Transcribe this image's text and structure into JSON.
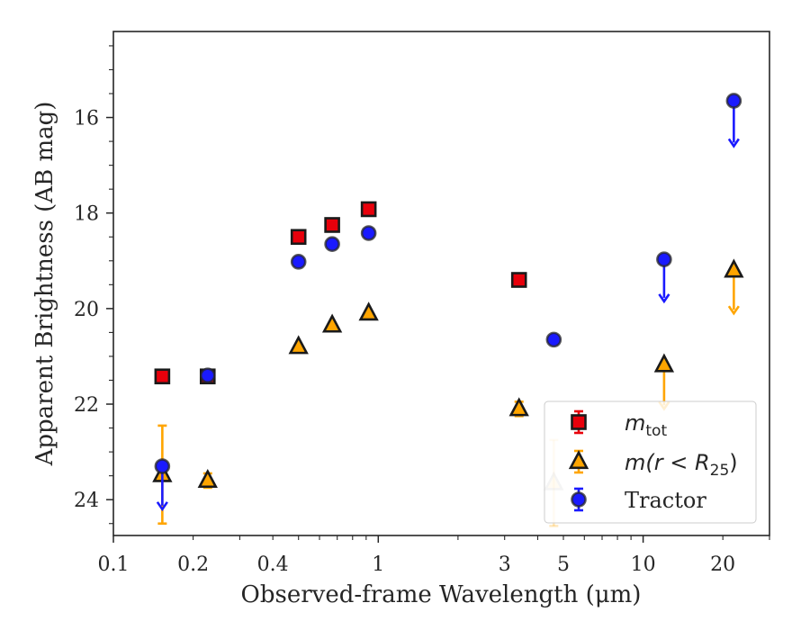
{
  "chart_data": {
    "type": "scatter",
    "title": "",
    "xlabel": "Observed-frame Wavelength (μm)",
    "ylabel": "Apparent Brightness (AB mag)",
    "xscale": "log",
    "xlim": [
      0.1,
      30
    ],
    "ylim": [
      24.75,
      14.2
    ],
    "y_inverted": true,
    "grid": false,
    "legend_position": "lower-right",
    "x_ticks": [
      {
        "value": 0.1,
        "label": "0.1"
      },
      {
        "value": 0.2,
        "label": "0.2"
      },
      {
        "value": 0.4,
        "label": "0.4"
      },
      {
        "value": 1,
        "label": "1"
      },
      {
        "value": 3,
        "label": "3"
      },
      {
        "value": 5,
        "label": "5"
      },
      {
        "value": 10,
        "label": "10"
      },
      {
        "value": 20,
        "label": "20"
      }
    ],
    "y_ticks": [
      {
        "value": 16,
        "label": "16"
      },
      {
        "value": 18,
        "label": "18"
      },
      {
        "value": 20,
        "label": "20"
      },
      {
        "value": 22,
        "label": "22"
      },
      {
        "value": 24,
        "label": "24"
      }
    ],
    "series": [
      {
        "name": "m_tot",
        "legend_main": "m",
        "legend_sub": "tot",
        "marker": "square",
        "color": "#e8000b",
        "edge_color": "#1a1a1a",
        "points": [
          {
            "x": 0.153,
            "y": 21.42
          },
          {
            "x": 0.227,
            "y": 21.42
          },
          {
            "x": 0.5,
            "y": 18.5
          },
          {
            "x": 0.67,
            "y": 18.25
          },
          {
            "x": 0.92,
            "y": 17.92
          },
          {
            "x": 3.4,
            "y": 19.4
          }
        ]
      },
      {
        "name": "m(r < R_25)",
        "legend_main": "m(r < R",
        "legend_sub": "25",
        "legend_suffix": ")",
        "marker": "triangle",
        "color": "#ffa500",
        "edge_color": "#1a1a1a",
        "points": [
          {
            "x": 0.153,
            "y": 23.48,
            "yerr_low": 22.45,
            "yerr_high": 24.5
          },
          {
            "x": 0.227,
            "y": 23.6,
            "yerr_low": 23.45,
            "yerr_high": 23.75
          },
          {
            "x": 0.5,
            "y": 20.8
          },
          {
            "x": 0.67,
            "y": 20.35
          },
          {
            "x": 0.92,
            "y": 20.1
          },
          {
            "x": 3.4,
            "y": 22.1,
            "yerr_low": 21.95,
            "yerr_high": 22.25
          },
          {
            "x": 4.6,
            "y": 23.65,
            "yerr_low": 22.75,
            "yerr_high": 24.55,
            "faded": true
          },
          {
            "x": 12.0,
            "y": 21.18,
            "upper_limit_to": 22.1
          },
          {
            "x": 22.0,
            "y": 19.2,
            "upper_limit_to": 20.1
          }
        ]
      },
      {
        "name": "Tractor",
        "legend_main": "Tractor",
        "marker": "circle",
        "color": "#1a1aff",
        "edge_color": "#262626",
        "points": [
          {
            "x": 0.153,
            "y": 23.3,
            "upper_limit_to": 24.2
          },
          {
            "x": 0.227,
            "y": 21.4
          },
          {
            "x": 0.5,
            "y": 19.02
          },
          {
            "x": 0.67,
            "y": 18.65
          },
          {
            "x": 0.92,
            "y": 18.42
          },
          {
            "x": 4.6,
            "y": 20.65
          },
          {
            "x": 12.0,
            "y": 18.97,
            "upper_limit_to": 19.85
          },
          {
            "x": 22.0,
            "y": 15.65,
            "upper_limit_to": 16.6
          }
        ]
      }
    ]
  }
}
